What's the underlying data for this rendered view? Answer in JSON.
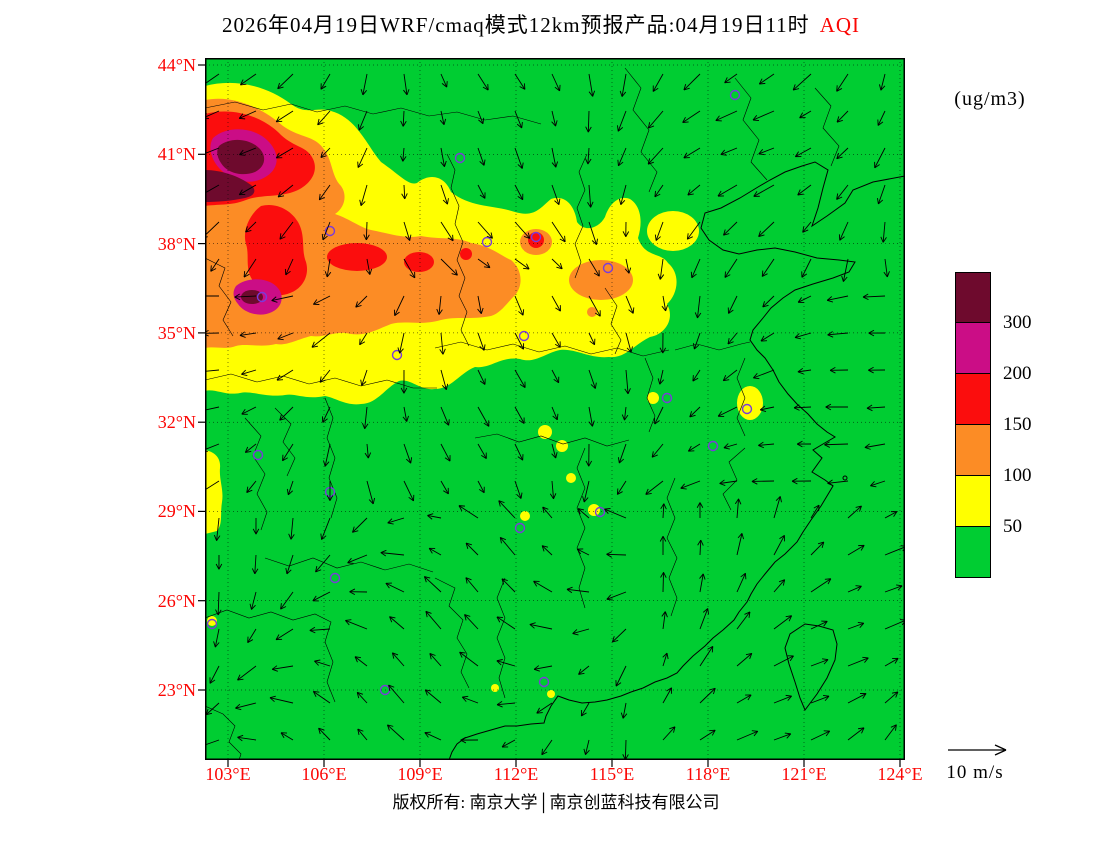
{
  "title": {
    "main": "2026年04月19日WRF/cmaq模式12km预报产品:04月19日11时",
    "highlight": "AQI",
    "highlight_color": "#fb0604"
  },
  "units_label": "(ug/m3)",
  "axes": {
    "label_color": "#fb0604",
    "lat_labels": [
      "44°N",
      "41°N",
      "38°N",
      "35°N",
      "32°N",
      "29°N",
      "26°N",
      "23°N"
    ],
    "lon_labels": [
      "103°E",
      "106°E",
      "109°E",
      "112°E",
      "115°E",
      "118°E",
      "121°E",
      "124°E"
    ]
  },
  "legend": {
    "tick_labels": [
      "300",
      "200",
      "150",
      "100",
      "50"
    ],
    "bands": [
      {
        "range": ">300",
        "color": "#6e0a2d"
      },
      {
        "range": "200-300",
        "color": "#cb0d86"
      },
      {
        "range": "150-200",
        "color": "#fb0d0d"
      },
      {
        "range": "100-150",
        "color": "#fc8c25"
      },
      {
        "range": "50-100",
        "color": "#ffff00"
      },
      {
        "range": "<50",
        "color": "#00cd32"
      }
    ]
  },
  "wind_reference": {
    "label": "10 m/s"
  },
  "map": {
    "station_marker_color": "#7a3bdb"
  },
  "footer": {
    "copyright": "版权所有: 南京大学│南京创蓝科技有限公司"
  },
  "chart_data": {
    "type": "heatmap",
    "title": "2026年04月19日WRF/cmaq模式12km预报产品:04月19日11时 AQI",
    "variable": "AQI",
    "units": "ug/m3",
    "model": "WRF/CMAQ 12km forecast product",
    "valid_time": "2026-04-19 11时",
    "lon_range": [
      103,
      124
    ],
    "lat_range": [
      20.6,
      44.2
    ],
    "lon_ticks": [
      103,
      106,
      109,
      112,
      115,
      118,
      121,
      124
    ],
    "lat_ticks": [
      23,
      26,
      29,
      32,
      35,
      38,
      41,
      44
    ],
    "grid": "dotted graticule every 3 degrees",
    "contour_levels": [
      50,
      100,
      150,
      200,
      300
    ],
    "palette": [
      {
        "range": "<50",
        "color": "#00cd32"
      },
      {
        "range": "50-100",
        "color": "#ffff00"
      },
      {
        "range": "100-150",
        "color": "#fc8c25"
      },
      {
        "range": "150-200",
        "color": "#fb0d0d"
      },
      {
        "range": "200-300",
        "color": "#cb0d86"
      },
      {
        "range": ">300",
        "color": "#6e0a2d"
      }
    ],
    "features": [
      {
        "aqi": ">300",
        "center_lon": 104.2,
        "center_lat": 41.2,
        "note": "severe pollution core in NW corner"
      },
      {
        "aqi": ">300",
        "center_lon": 104.4,
        "center_lat": 36.2,
        "note": "second severe core with magenta ring"
      },
      {
        "aqi": "200-300",
        "lon_span": [
          103,
          105.5
        ],
        "lat_span": [
          40.3,
          42.2
        ]
      },
      {
        "aqi": "150-200",
        "lon_span": [
          103,
          107
        ],
        "lat_span": [
          36,
          42.5
        ]
      },
      {
        "aqi": "100-150",
        "lon_span": [
          103,
          112.5
        ],
        "lat_span": [
          35,
          38.5
        ],
        "note": "orange band across north China"
      },
      {
        "aqi": "50-100",
        "lon_span": [
          103,
          117.5
        ],
        "lat_span": [
          33,
          43.3
        ],
        "note": "broad yellow envelope, tongues to 115-117E near 38-39.5N"
      },
      {
        "aqi": "50-100",
        "note": "scattered small yellow patches in central/south China and along 103E near 28-31N"
      },
      {
        "aqi": "<50",
        "note": "rest of domain (central, south, east China and seas) green"
      }
    ],
    "wind_overlay": {
      "type": "vector arrows",
      "reference_speed": "10 m/s",
      "note": "northerly flow over north China, variable elsewhere"
    },
    "station_markers": {
      "shape": "open purple circles",
      "count": 20
    }
  }
}
